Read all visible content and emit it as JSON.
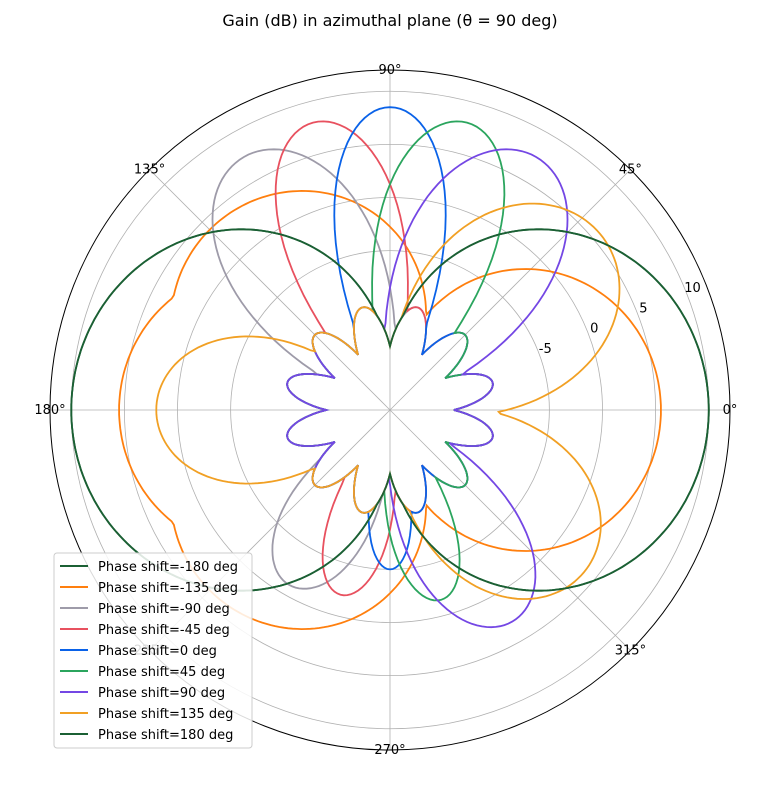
{
  "chart_data": {
    "type": "line",
    "projection": "polar",
    "title": "Gain (dB) in azimuthal plane (θ = 90 deg)",
    "angle_ticks": [
      "0°",
      "45°",
      "90°",
      "135°",
      "180°",
      "225°",
      "270°",
      "315°"
    ],
    "radial_ticks": [
      -5,
      0,
      5,
      10
    ],
    "radial_tick_labels": [
      "-5",
      "0",
      "5",
      "10"
    ],
    "rlim": [
      -20,
      12
    ],
    "grid": true,
    "legend_placement": "lower-left",
    "series": [
      {
        "name": "Phase shift=-180 deg",
        "color": "#1b6034",
        "lobes": [
          {
            "angle": 0,
            "peak": 10
          },
          {
            "angle": 180,
            "peak": 10
          }
        ],
        "beamwidth": 62
      },
      {
        "name": "Phase shift=-135 deg",
        "color": "#ff7f0e",
        "lobes": [
          {
            "angle": 0,
            "peak": 5.5
          },
          {
            "angle": 180,
            "peak": 5.5
          },
          {
            "angle": 135,
            "peak": 4
          },
          {
            "angle": 225,
            "peak": 4
          }
        ],
        "beamwidth": 60
      },
      {
        "name": "Phase shift=-90 deg",
        "color": "#9e9ba9",
        "lobes": [
          {
            "angle": 120,
            "peak": 7.5
          },
          {
            "angle": 240,
            "peak": -1
          }
        ],
        "beamwidth": 26
      },
      {
        "name": "Phase shift=-45 deg",
        "color": "#e8515f",
        "lobes": [
          {
            "angle": 105,
            "peak": 8
          },
          {
            "angle": 255,
            "peak": -2
          }
        ],
        "beamwidth": 20
      },
      {
        "name": "Phase shift=0 deg",
        "color": "#0a62e8",
        "lobes": [
          {
            "angle": 90,
            "peak": 8.5
          },
          {
            "angle": 270,
            "peak": -5
          }
        ],
        "beamwidth": 18
      },
      {
        "name": "Phase shift=45 deg",
        "color": "#2ba55e",
        "lobes": [
          {
            "angle": 75,
            "peak": 8
          },
          {
            "angle": 285,
            "peak": -1.5
          }
        ],
        "beamwidth": 20
      },
      {
        "name": "Phase shift=90 deg",
        "color": "#7447e4",
        "lobes": [
          {
            "angle": 60,
            "peak": 7.5
          },
          {
            "angle": 300,
            "peak": 3
          }
        ],
        "beamwidth": 26
      },
      {
        "name": "Phase shift=135 deg",
        "color": "#f1a024",
        "lobes": [
          {
            "angle": 40,
            "peak": 5.8
          },
          {
            "angle": 320,
            "peak": 3.8
          },
          {
            "angle": 180,
            "peak": 2
          }
        ],
        "beamwidth": 36
      },
      {
        "name": "Phase shift=180 deg",
        "color": "#1b6034",
        "lobes": [
          {
            "angle": 0,
            "peak": 10
          },
          {
            "angle": 180,
            "peak": 10
          }
        ],
        "beamwidth": 62
      }
    ]
  }
}
